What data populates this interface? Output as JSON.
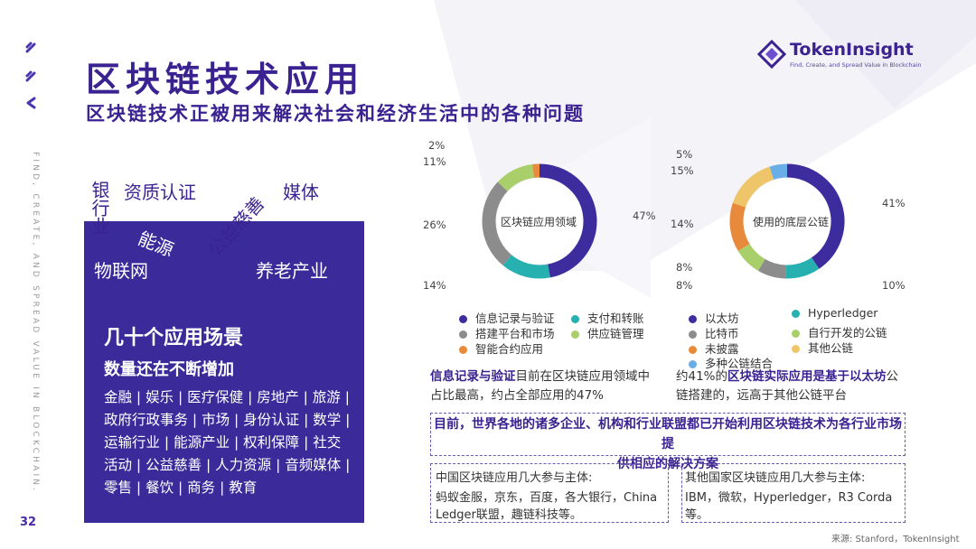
{
  "page": {
    "title": "区块链技术应用",
    "subtitle": "区块链技术正被用来解决社会和经济生活中的各种问题",
    "side_text": "FIND, CREATE, AND SPREAD VALUE IN BLOCKCHAIN.",
    "page_number": "32",
    "source": "来源: Stanford，TokenInsight"
  },
  "logo": {
    "name": "TokenInsight",
    "tagline": "Find, Create, and Spread Value in Blockchain"
  },
  "word_cloud": {
    "bank": "银行业",
    "qualification": "资质认证",
    "charity": "公益慈善",
    "media": "媒体",
    "energy": "能源",
    "iot": "物联网",
    "elderly": "养老产业"
  },
  "purple_box": {
    "heading": "几十个应用场景",
    "subheading": "数量还在不断增加",
    "lines": [
      "金融 | 娱乐 | 医疗保健 | 房地产 | 旅游 |",
      "政府行政事务 | 市场 | 身份认证 | 数学 |",
      "运输行业 | 能源产业 | 权利保障 | 社交",
      "活动 | 公益慈善 | 人力资源 | 音频媒体 |",
      "零售 | 餐饮 | 商务 | 教育"
    ]
  },
  "colors": {
    "purple": "#3d2c9e",
    "teal": "#26b0b0",
    "gray": "#8c8c8c",
    "green": "#a8cf6a",
    "orange": "#e88a3c",
    "yellow": "#efc56a",
    "blue": "#6aaee8"
  },
  "chart_data": [
    {
      "type": "pie",
      "title": "区块链应用领域",
      "labels": [
        "信息记录与验证",
        "支付和转账",
        "搭建平台和市场",
        "供应链管理",
        "智能合约应用"
      ],
      "values": [
        47,
        14,
        26,
        11,
        2
      ],
      "value_labels": [
        "47%",
        "14%",
        "26%",
        "11%",
        "2%"
      ],
      "colors": [
        "#3d2c9e",
        "#26b0b0",
        "#8c8c8c",
        "#a8cf6a",
        "#e88a3c"
      ]
    },
    {
      "type": "pie",
      "title": "使用的底层公链",
      "labels": [
        "以太坊",
        "Hyperledger",
        "比特币",
        "自行开发的公链",
        "未披露",
        "其他公链",
        "多种公链结合"
      ],
      "values": [
        41,
        10,
        8,
        8,
        14,
        15,
        5
      ],
      "value_labels": [
        "41%",
        "10%",
        "8%",
        "8%",
        "14%",
        "15%",
        "5%"
      ],
      "colors": [
        "#3d2c9e",
        "#26b0b0",
        "#8c8c8c",
        "#a8cf6a",
        "#e88a3c",
        "#efc56a",
        "#6aaee8"
      ]
    }
  ],
  "notes": {
    "left_hl": "信息记录与验证",
    "left_rest_1": "目前在区块链应用领域中",
    "left_rest_2": "占比最高，约占全部应用的47%",
    "right_pre": "约41%的",
    "right_hl1": "区块链实际应用是基于以太坊",
    "right_post": "公",
    "right_line2": "链搭建的，远高于其他公链平台"
  },
  "callout": {
    "line1": "目前，世界各地的诸多企业、机构和行业联盟都已开始利用区块链技术为各行业市场提",
    "line2": "供相应的解决方案"
  },
  "china_box": {
    "title": "中国区块链应用几大参与主体:",
    "line1": "蚂蚁金服，京东，百度，各大银行，China",
    "line2": "Ledger联盟，趣链科技等。"
  },
  "other_box": {
    "title": "其他国家区块链应用几大参与主体:",
    "line1": "IBM，微软，Hyperledger，R3 Corda",
    "line2": "等。"
  }
}
